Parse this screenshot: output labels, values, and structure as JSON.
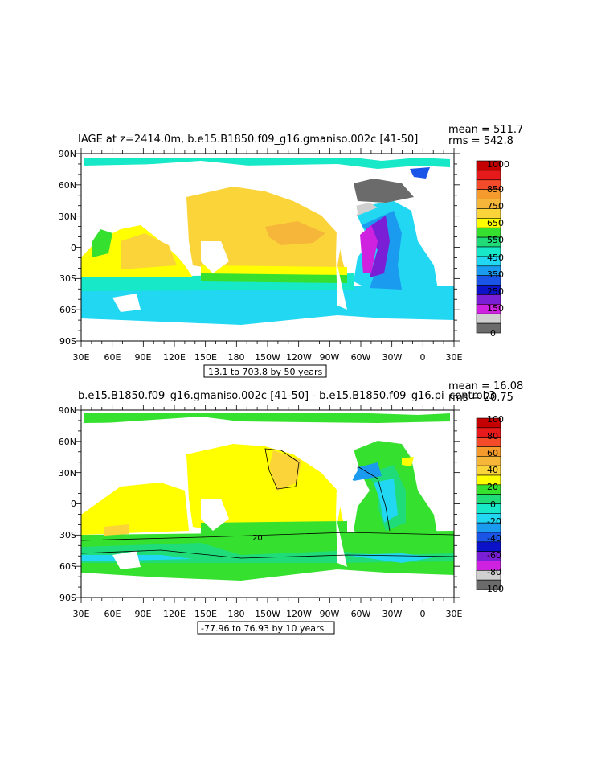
{
  "colors": {
    "land": "#ffffff",
    "frame": "#000000",
    "colorbar_top": [
      "#c40000",
      "#e61a1a",
      "#f44b2a",
      "#f59a2c",
      "#f6b63a",
      "#fbd43a",
      "#ffff00",
      "#36e02e",
      "#1fdc78",
      "#16e8c8",
      "#22d7f2",
      "#1b9bf0",
      "#1a55e8",
      "#0b12c8",
      "#7b1fd6",
      "#cf22e0",
      "#d0d0d0",
      "#6b6b6b"
    ],
    "colorbar_bottom": [
      "#c40000",
      "#e61a1a",
      "#f44b2a",
      "#f59a2c",
      "#f6b63a",
      "#fbd43a",
      "#ffff00",
      "#36e02e",
      "#1fdc78",
      "#16e8c8",
      "#22d7f2",
      "#1b9bf0",
      "#1a55e8",
      "#0b12c8",
      "#7b1fd6",
      "#cf22e0",
      "#d0d0d0",
      "#6b6b6b"
    ]
  },
  "axes": {
    "lat_labels": [
      "90N",
      "60N",
      "30N",
      "0",
      "30S",
      "60S",
      "90S"
    ],
    "lon_labels": [
      "30E",
      "60E",
      "90E",
      "120E",
      "150E",
      "180",
      "150W",
      "120W",
      "90W",
      "60W",
      "30W",
      "0",
      "30E"
    ]
  },
  "panels": [
    {
      "title": "IAGE at z=2414.0m, b.e15.B1850.f09_g16.gmaniso.002c [41-50]",
      "mean": "mean = 511.7",
      "rms": "rms = 542.8",
      "range": "13.1 to 703.8 by 50 years",
      "colorbar_labels": [
        "1000",
        "850",
        "750",
        "650",
        "550",
        "450",
        "350",
        "250",
        "150",
        "0"
      ],
      "contour_label": ""
    },
    {
      "title": "b.e15.B1850.f09_g16.gmaniso.002c [41-50] - b.e15.B1850.f09_g16.pi_control.3",
      "mean": "mean = 16.08",
      "rms": "rms = 20.75",
      "range": "-77.96 to 76.93 by 10 years",
      "colorbar_labels": [
        "100",
        "80",
        "60",
        "40",
        "20",
        "0",
        "-20",
        "-40",
        "-60",
        "-80",
        "-100"
      ],
      "contour_label": "20"
    }
  ]
}
